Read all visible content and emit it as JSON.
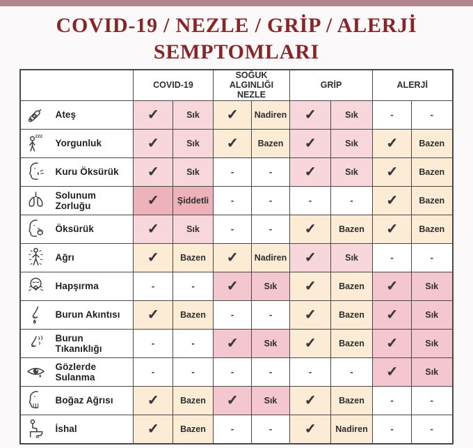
{
  "title": {
    "line1": "COVID-19 / NEZLE / GRİP / ALERJİ",
    "line2": "SEMPTOMLARI"
  },
  "colors": {
    "title_red": "#8a2428",
    "top_bar": "#b1858b",
    "bottom_bar": "#f3dee2",
    "cell_pink": "#f8d7dc",
    "cell_pink_deep": "#f4c6cf",
    "cell_pink_dark": "#eeb3ba",
    "cell_cream": "#fcecd6",
    "border": "#474747"
  },
  "table": {
    "column_groups": [
      {
        "label": "COVID-19"
      },
      {
        "label": "SOĞUK ALGINLIĞI NEZLE"
      },
      {
        "label": "GRİP"
      },
      {
        "label": "ALERJİ"
      }
    ],
    "frequency_terms": [
      "Sık",
      "Bazen",
      "Nadiren",
      "Şiddetli"
    ],
    "rows": [
      {
        "symptom": "Ateş",
        "icon": "thermometer-icon",
        "cells": [
          {
            "v": "✓",
            "bg": "pink"
          },
          {
            "v": "Sık",
            "bg": "pink"
          },
          {
            "v": "✓",
            "bg": "cream"
          },
          {
            "v": "Nadiren",
            "bg": "cream"
          },
          {
            "v": "✓",
            "bg": "pink"
          },
          {
            "v": "Sık",
            "bg": "pink"
          },
          {
            "v": "-",
            "bg": "white"
          },
          {
            "v": "-",
            "bg": "white"
          }
        ]
      },
      {
        "symptom": "Yorgunluk",
        "icon": "fatigue-icon",
        "cells": [
          {
            "v": "✓",
            "bg": "pink"
          },
          {
            "v": "Sık",
            "bg": "pink"
          },
          {
            "v": "✓",
            "bg": "cream"
          },
          {
            "v": "Bazen",
            "bg": "cream"
          },
          {
            "v": "✓",
            "bg": "pink"
          },
          {
            "v": "Sık",
            "bg": "pink"
          },
          {
            "v": "✓",
            "bg": "cream"
          },
          {
            "v": "Bazen",
            "bg": "cream"
          }
        ]
      },
      {
        "symptom": "Kuru Öksürük",
        "icon": "dry-cough-icon",
        "cells": [
          {
            "v": "✓",
            "bg": "pink"
          },
          {
            "v": "Sık",
            "bg": "pink"
          },
          {
            "v": "-",
            "bg": "white"
          },
          {
            "v": "-",
            "bg": "white"
          },
          {
            "v": "✓",
            "bg": "pink"
          },
          {
            "v": "Sık",
            "bg": "pink"
          },
          {
            "v": "✓",
            "bg": "cream"
          },
          {
            "v": "Bazen",
            "bg": "cream"
          }
        ]
      },
      {
        "symptom": "Solunum Zorluğu",
        "icon": "lungs-icon",
        "cells": [
          {
            "v": "✓",
            "bg": "dark"
          },
          {
            "v": "Şiddetli",
            "bg": "dark"
          },
          {
            "v": "-",
            "bg": "white"
          },
          {
            "v": "-",
            "bg": "white"
          },
          {
            "v": "-",
            "bg": "white"
          },
          {
            "v": "-",
            "bg": "white"
          },
          {
            "v": "✓",
            "bg": "cream"
          },
          {
            "v": "Bazen",
            "bg": "cream"
          }
        ]
      },
      {
        "symptom": "Öksürük",
        "icon": "cough-icon",
        "cells": [
          {
            "v": "✓",
            "bg": "pink"
          },
          {
            "v": "Sık",
            "bg": "pink"
          },
          {
            "v": "-",
            "bg": "white"
          },
          {
            "v": "-",
            "bg": "white"
          },
          {
            "v": "✓",
            "bg": "cream"
          },
          {
            "v": "Bazen",
            "bg": "cream"
          },
          {
            "v": "✓",
            "bg": "cream"
          },
          {
            "v": "Bazen",
            "bg": "cream"
          }
        ]
      },
      {
        "symptom": "Ağrı",
        "icon": "body-ache-icon",
        "cells": [
          {
            "v": "✓",
            "bg": "cream"
          },
          {
            "v": "Bazen",
            "bg": "cream"
          },
          {
            "v": "✓",
            "bg": "cream"
          },
          {
            "v": "Nadiren",
            "bg": "cream"
          },
          {
            "v": "✓",
            "bg": "pink"
          },
          {
            "v": "Sık",
            "bg": "pink"
          },
          {
            "v": "-",
            "bg": "white"
          },
          {
            "v": "-",
            "bg": "white"
          }
        ]
      },
      {
        "symptom": "Hapşırma",
        "icon": "sneeze-icon",
        "cells": [
          {
            "v": "-",
            "bg": "white"
          },
          {
            "v": "-",
            "bg": "white"
          },
          {
            "v": "✓",
            "bg": "pink2"
          },
          {
            "v": "Sık",
            "bg": "pink2"
          },
          {
            "v": "✓",
            "bg": "cream"
          },
          {
            "v": "Bazen",
            "bg": "cream"
          },
          {
            "v": "✓",
            "bg": "pink2"
          },
          {
            "v": "Sık",
            "bg": "pink2"
          }
        ]
      },
      {
        "symptom": "Burun Akıntısı",
        "icon": "runny-nose-icon",
        "cells": [
          {
            "v": "✓",
            "bg": "cream"
          },
          {
            "v": "Bazen",
            "bg": "cream"
          },
          {
            "v": "-",
            "bg": "white"
          },
          {
            "v": "-",
            "bg": "white"
          },
          {
            "v": "✓",
            "bg": "cream"
          },
          {
            "v": "Bazen",
            "bg": "cream"
          },
          {
            "v": "✓",
            "bg": "pink2"
          },
          {
            "v": "Sık",
            "bg": "pink2"
          }
        ]
      },
      {
        "symptom": "Burun Tıkanıklığı",
        "icon": "nasal-congestion-icon",
        "cells": [
          {
            "v": "-",
            "bg": "white"
          },
          {
            "v": "-",
            "bg": "white"
          },
          {
            "v": "✓",
            "bg": "pink2"
          },
          {
            "v": "Sık",
            "bg": "pink2"
          },
          {
            "v": "✓",
            "bg": "cream"
          },
          {
            "v": "Bazen",
            "bg": "cream"
          },
          {
            "v": "✓",
            "bg": "pink2"
          },
          {
            "v": "Sık",
            "bg": "pink2"
          }
        ]
      },
      {
        "symptom": "Gözlerde Sulanma",
        "icon": "watery-eye-icon",
        "cells": [
          {
            "v": "-",
            "bg": "white"
          },
          {
            "v": "-",
            "bg": "white"
          },
          {
            "v": "-",
            "bg": "white"
          },
          {
            "v": "-",
            "bg": "white"
          },
          {
            "v": "-",
            "bg": "white"
          },
          {
            "v": "-",
            "bg": "white"
          },
          {
            "v": "✓",
            "bg": "pink2"
          },
          {
            "v": "Sık",
            "bg": "pink2"
          }
        ]
      },
      {
        "symptom": "Boğaz Ağrısı",
        "icon": "sore-throat-icon",
        "cells": [
          {
            "v": "✓",
            "bg": "cream"
          },
          {
            "v": "Bazen",
            "bg": "cream"
          },
          {
            "v": "✓",
            "bg": "pink2"
          },
          {
            "v": "Sık",
            "bg": "pink2"
          },
          {
            "v": "✓",
            "bg": "cream"
          },
          {
            "v": "Bazen",
            "bg": "cream"
          },
          {
            "v": "-",
            "bg": "white"
          },
          {
            "v": "-",
            "bg": "white"
          }
        ]
      },
      {
        "symptom": "İshal",
        "icon": "diarrhea-icon",
        "cells": [
          {
            "v": "✓",
            "bg": "cream"
          },
          {
            "v": "Bazen",
            "bg": "cream"
          },
          {
            "v": "-",
            "bg": "white"
          },
          {
            "v": "-",
            "bg": "white"
          },
          {
            "v": "✓",
            "bg": "cream"
          },
          {
            "v": "Nadiren",
            "bg": "cream"
          },
          {
            "v": "-",
            "bg": "white"
          },
          {
            "v": "-",
            "bg": "white"
          }
        ]
      }
    ]
  }
}
